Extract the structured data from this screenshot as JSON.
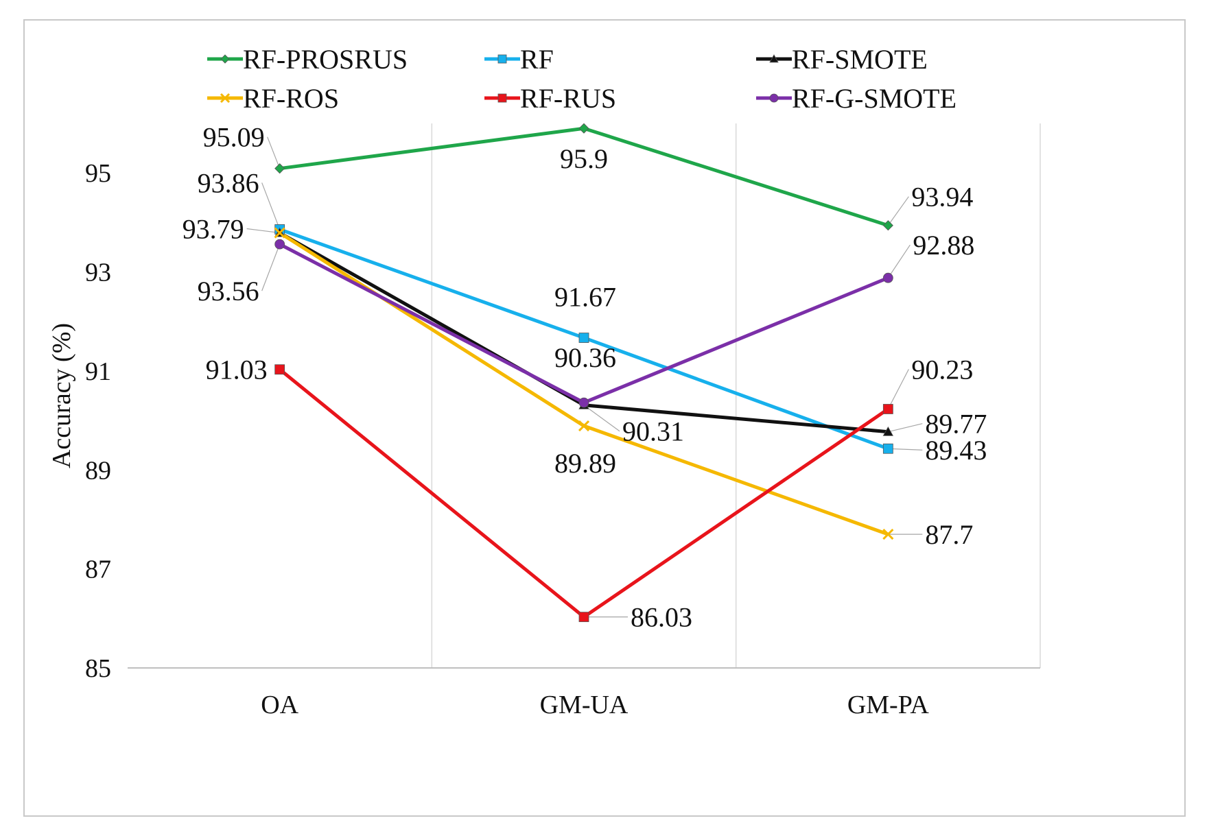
{
  "chart_data": {
    "type": "line",
    "title": "",
    "xlabel": "",
    "ylabel": "Accuracy (%)",
    "categories": [
      "OA",
      "GM-UA",
      "GM-PA"
    ],
    "ylim": [
      85,
      96
    ],
    "yticks": [
      85,
      87,
      89,
      91,
      93,
      95
    ],
    "grid": "vertical",
    "legend_position": "top",
    "series": [
      {
        "name": "RF-PROSRUS",
        "color": "#1fa64a",
        "marker": "diamond",
        "values": [
          95.09,
          95.9,
          93.94
        ],
        "labels": [
          "95.09",
          "95.9",
          "93.94"
        ]
      },
      {
        "name": "RF",
        "color": "#17b0ec",
        "marker": "square",
        "values": [
          93.86,
          91.67,
          89.43
        ],
        "labels": [
          "93.86",
          "91.67",
          "89.43"
        ]
      },
      {
        "name": "RF-SMOTE",
        "color": "#111111",
        "marker": "triangle",
        "values": [
          93.79,
          90.31,
          89.77
        ],
        "labels": [
          "93.79",
          "90.31",
          "89.77"
        ]
      },
      {
        "name": "RF-ROS",
        "color": "#f5b800",
        "marker": "x",
        "values": [
          93.79,
          89.89,
          87.7
        ],
        "labels": [
          "",
          "89.89",
          "87.7"
        ]
      },
      {
        "name": "RF-RUS",
        "color": "#e8141b",
        "marker": "square",
        "values": [
          91.03,
          86.03,
          90.23
        ],
        "labels": [
          "91.03",
          "86.03",
          "90.23"
        ]
      },
      {
        "name": "RF-G-SMOTE",
        "color": "#7b2fa8",
        "marker": "circle",
        "values": [
          93.56,
          90.36,
          92.88
        ],
        "labels": [
          "93.56",
          "90.36",
          "92.88"
        ]
      }
    ]
  }
}
